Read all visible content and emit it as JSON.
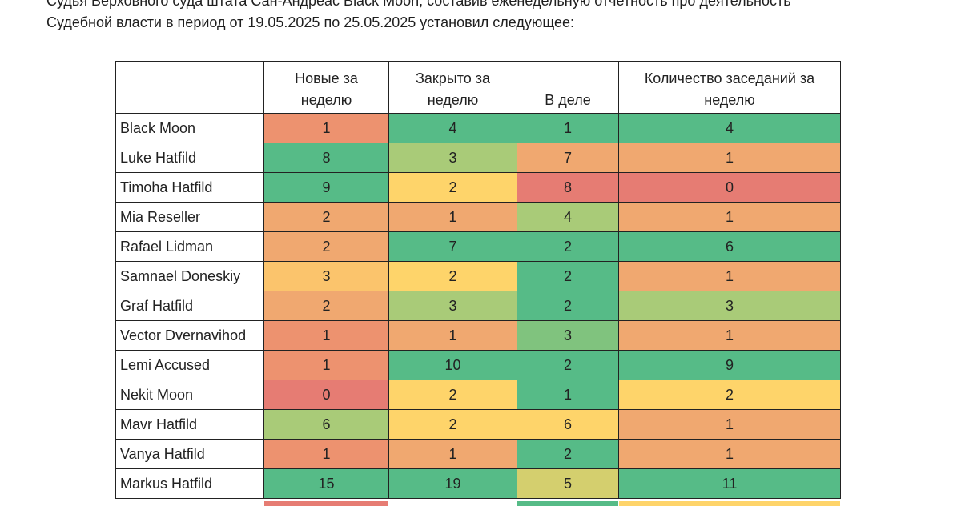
{
  "intro": {
    "line1": "Судья Верховного суда штата Сан-Андреас Black Moon, составив еженедельную отчетность про деятельность",
    "line2": "Судебной власти в период от 19.05.2025 по 25.05.2025 установил следующее:"
  },
  "table": {
    "headers": [
      "",
      "Новые за\nнеделю",
      "Закрыто за\nнеделю",
      "В деле",
      "Количество заседаний за\nнеделю"
    ],
    "rows": [
      {
        "name": "Black Moon",
        "values": [
          "1",
          "4",
          "1",
          "4"
        ],
        "colors": [
          "#ed926f",
          "#56bb87",
          "#56bb87",
          "#56bb87"
        ]
      },
      {
        "name": "Luke Hatfild",
        "values": [
          "8",
          "3",
          "7",
          "1"
        ],
        "colors": [
          "#56bb87",
          "#a9cb78",
          "#f0a870",
          "#f0a870"
        ]
      },
      {
        "name": "Timoha Hatfild",
        "values": [
          "9",
          "2",
          "8",
          "0"
        ],
        "colors": [
          "#56bb87",
          "#fed46a",
          "#e67c73",
          "#e67c73"
        ]
      },
      {
        "name": "Mia Reseller",
        "values": [
          "2",
          "1",
          "4",
          "1"
        ],
        "colors": [
          "#f0a870",
          "#f0a870",
          "#a9cb78",
          "#f0a870"
        ]
      },
      {
        "name": "Rafael Lidman",
        "values": [
          "2",
          "7",
          "2",
          "6"
        ],
        "colors": [
          "#f0a870",
          "#56bb87",
          "#56bb87",
          "#56bb87"
        ]
      },
      {
        "name": "Samnael Doneskiy",
        "values": [
          "3",
          "2",
          "2",
          "1"
        ],
        "colors": [
          "#fbc46c",
          "#fed46a",
          "#56bb87",
          "#f0a870"
        ]
      },
      {
        "name": "Graf Hatfild",
        "values": [
          "2",
          "3",
          "2",
          "3"
        ],
        "colors": [
          "#f0a870",
          "#a9cb78",
          "#56bb87",
          "#a9cb78"
        ]
      },
      {
        "name": "Vector Dvernavihod",
        "values": [
          "1",
          "1",
          "3",
          "1"
        ],
        "colors": [
          "#ed926f",
          "#f0a870",
          "#80c37e",
          "#f0a870"
        ]
      },
      {
        "name": "Lemi Accused",
        "values": [
          "1",
          "10",
          "2",
          "9"
        ],
        "colors": [
          "#ed926f",
          "#56bb87",
          "#56bb87",
          "#56bb87"
        ]
      },
      {
        "name": "Nekit Moon",
        "values": [
          "0",
          "2",
          "1",
          "2"
        ],
        "colors": [
          "#e67c73",
          "#fed46a",
          "#56bb87",
          "#fed46a"
        ]
      },
      {
        "name": "Mavr Hatfild",
        "values": [
          "6",
          "2",
          "6",
          "1"
        ],
        "colors": [
          "#a9cb78",
          "#fed46a",
          "#fed46a",
          "#f0a870"
        ]
      },
      {
        "name": "Vanya Hatfild",
        "values": [
          "1",
          "1",
          "2",
          "1"
        ],
        "colors": [
          "#ed926f",
          "#f0a870",
          "#56bb87",
          "#f0a870"
        ]
      },
      {
        "name": "Markus Hatfild",
        "values": [
          "15",
          "19",
          "5",
          "11"
        ],
        "colors": [
          "#56bb87",
          "#56bb87",
          "#d4cf6e",
          "#56bb87"
        ]
      }
    ],
    "next_row_colors": [
      "#e67c73",
      "",
      "#56bb87",
      "#fed46a"
    ]
  }
}
